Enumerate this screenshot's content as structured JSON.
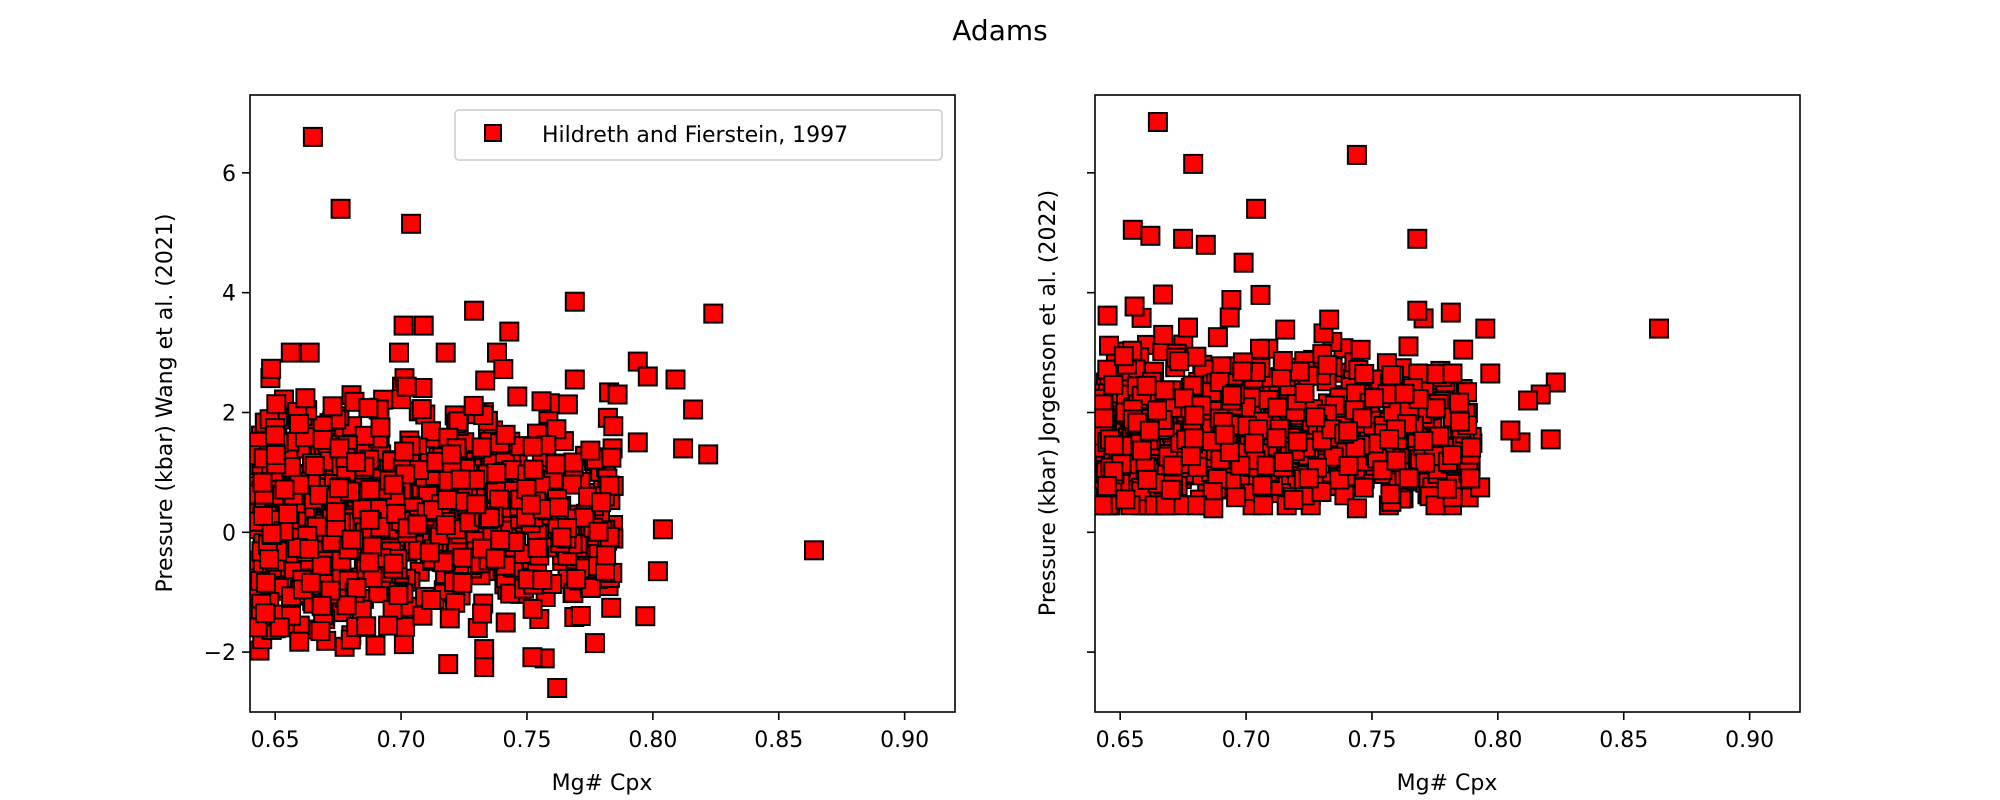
{
  "figure": {
    "title": "Adams"
  },
  "colors": {
    "marker_fill": "#ff0000",
    "marker_edge": "#000000",
    "axes": "#000000",
    "legend_edge": "#cccccc"
  },
  "chart_data": [
    {
      "type": "scatter",
      "xlabel": "Mg# Cpx",
      "ylabel": "Pressure (kbar) Wang et al. (2021)",
      "xlim": [
        0.64,
        0.92
      ],
      "ylim": [
        -3.0,
        7.3
      ],
      "xticks": [
        0.65,
        0.7,
        0.75,
        0.8,
        0.85,
        0.9
      ],
      "xtick_labels": [
        "0.65",
        "0.70",
        "0.75",
        "0.80",
        "0.85",
        "0.90"
      ],
      "yticks": [
        -2,
        0,
        2,
        4,
        6
      ],
      "ytick_labels": [
        "−2",
        "0",
        "2",
        "4",
        "6"
      ],
      "legend": {
        "placement": "upper-right",
        "entries": [
          "Hildreth and Fierstein, 1997"
        ]
      },
      "highlight_points": [
        [
          0.665,
          6.6
        ],
        [
          0.676,
          5.4
        ],
        [
          0.704,
          5.15
        ],
        [
          0.769,
          3.85
        ],
        [
          0.729,
          3.7
        ],
        [
          0.824,
          3.65
        ],
        [
          0.701,
          3.45
        ],
        [
          0.709,
          3.45
        ],
        [
          0.743,
          3.35
        ],
        [
          0.864,
          -0.3
        ],
        [
          0.812,
          1.4
        ],
        [
          0.822,
          1.3
        ],
        [
          0.816,
          2.05
        ],
        [
          0.809,
          2.55
        ],
        [
          0.794,
          2.85
        ],
        [
          0.798,
          2.6
        ],
        [
          0.804,
          0.05
        ],
        [
          0.802,
          -0.65
        ],
        [
          0.797,
          -1.4
        ],
        [
          0.777,
          -1.85
        ],
        [
          0.762,
          -2.6
        ],
        [
          0.733,
          -2.25
        ],
        [
          0.733,
          -1.95
        ],
        [
          0.668,
          -1.65
        ],
        [
          0.646,
          -1.35
        ],
        [
          0.794,
          1.5
        ],
        [
          0.786,
          2.3
        ],
        [
          0.769,
          2.55
        ]
      ],
      "cluster": {
        "points": 900,
        "x_range": [
          0.643,
          0.785
        ],
        "y_center": 0.35,
        "y_spread": [
          -2.2,
          3.0
        ]
      }
    },
    {
      "type": "scatter",
      "xlabel": "Mg# Cpx",
      "ylabel": "Pressure (kbar) Jorgenson et al. (2022)",
      "xlim": [
        0.64,
        0.92
      ],
      "ylim": [
        -3.0,
        7.3
      ],
      "xticks": [
        0.65,
        0.7,
        0.75,
        0.8,
        0.85,
        0.9
      ],
      "xtick_labels": [
        "0.65",
        "0.70",
        "0.75",
        "0.80",
        "0.85",
        "0.90"
      ],
      "yticks": [
        -2,
        0,
        2,
        4,
        6
      ],
      "ytick_labels": [
        "",
        "",
        "",
        "",
        ""
      ],
      "highlight_points": [
        [
          0.665,
          6.85
        ],
        [
          0.679,
          6.15
        ],
        [
          0.744,
          6.3
        ],
        [
          0.704,
          5.4
        ],
        [
          0.655,
          5.05
        ],
        [
          0.662,
          4.95
        ],
        [
          0.675,
          4.9
        ],
        [
          0.684,
          4.8
        ],
        [
          0.768,
          4.9
        ],
        [
          0.699,
          4.5
        ],
        [
          0.768,
          3.7
        ],
        [
          0.795,
          3.4
        ],
        [
          0.864,
          3.4
        ],
        [
          0.733,
          3.55
        ],
        [
          0.823,
          2.5
        ],
        [
          0.817,
          2.3
        ],
        [
          0.812,
          2.2
        ],
        [
          0.821,
          1.55
        ],
        [
          0.809,
          1.5
        ],
        [
          0.805,
          1.7
        ],
        [
          0.687,
          0.4
        ],
        [
          0.744,
          0.4
        ],
        [
          0.793,
          0.75
        ],
        [
          0.789,
          0.9
        ],
        [
          0.797,
          2.65
        ],
        [
          0.782,
          2.65
        ]
      ],
      "cluster": {
        "points": 850,
        "x_range": [
          0.643,
          0.79
        ],
        "y_center": 1.6,
        "y_spread": [
          0.45,
          4.3
        ]
      }
    }
  ]
}
